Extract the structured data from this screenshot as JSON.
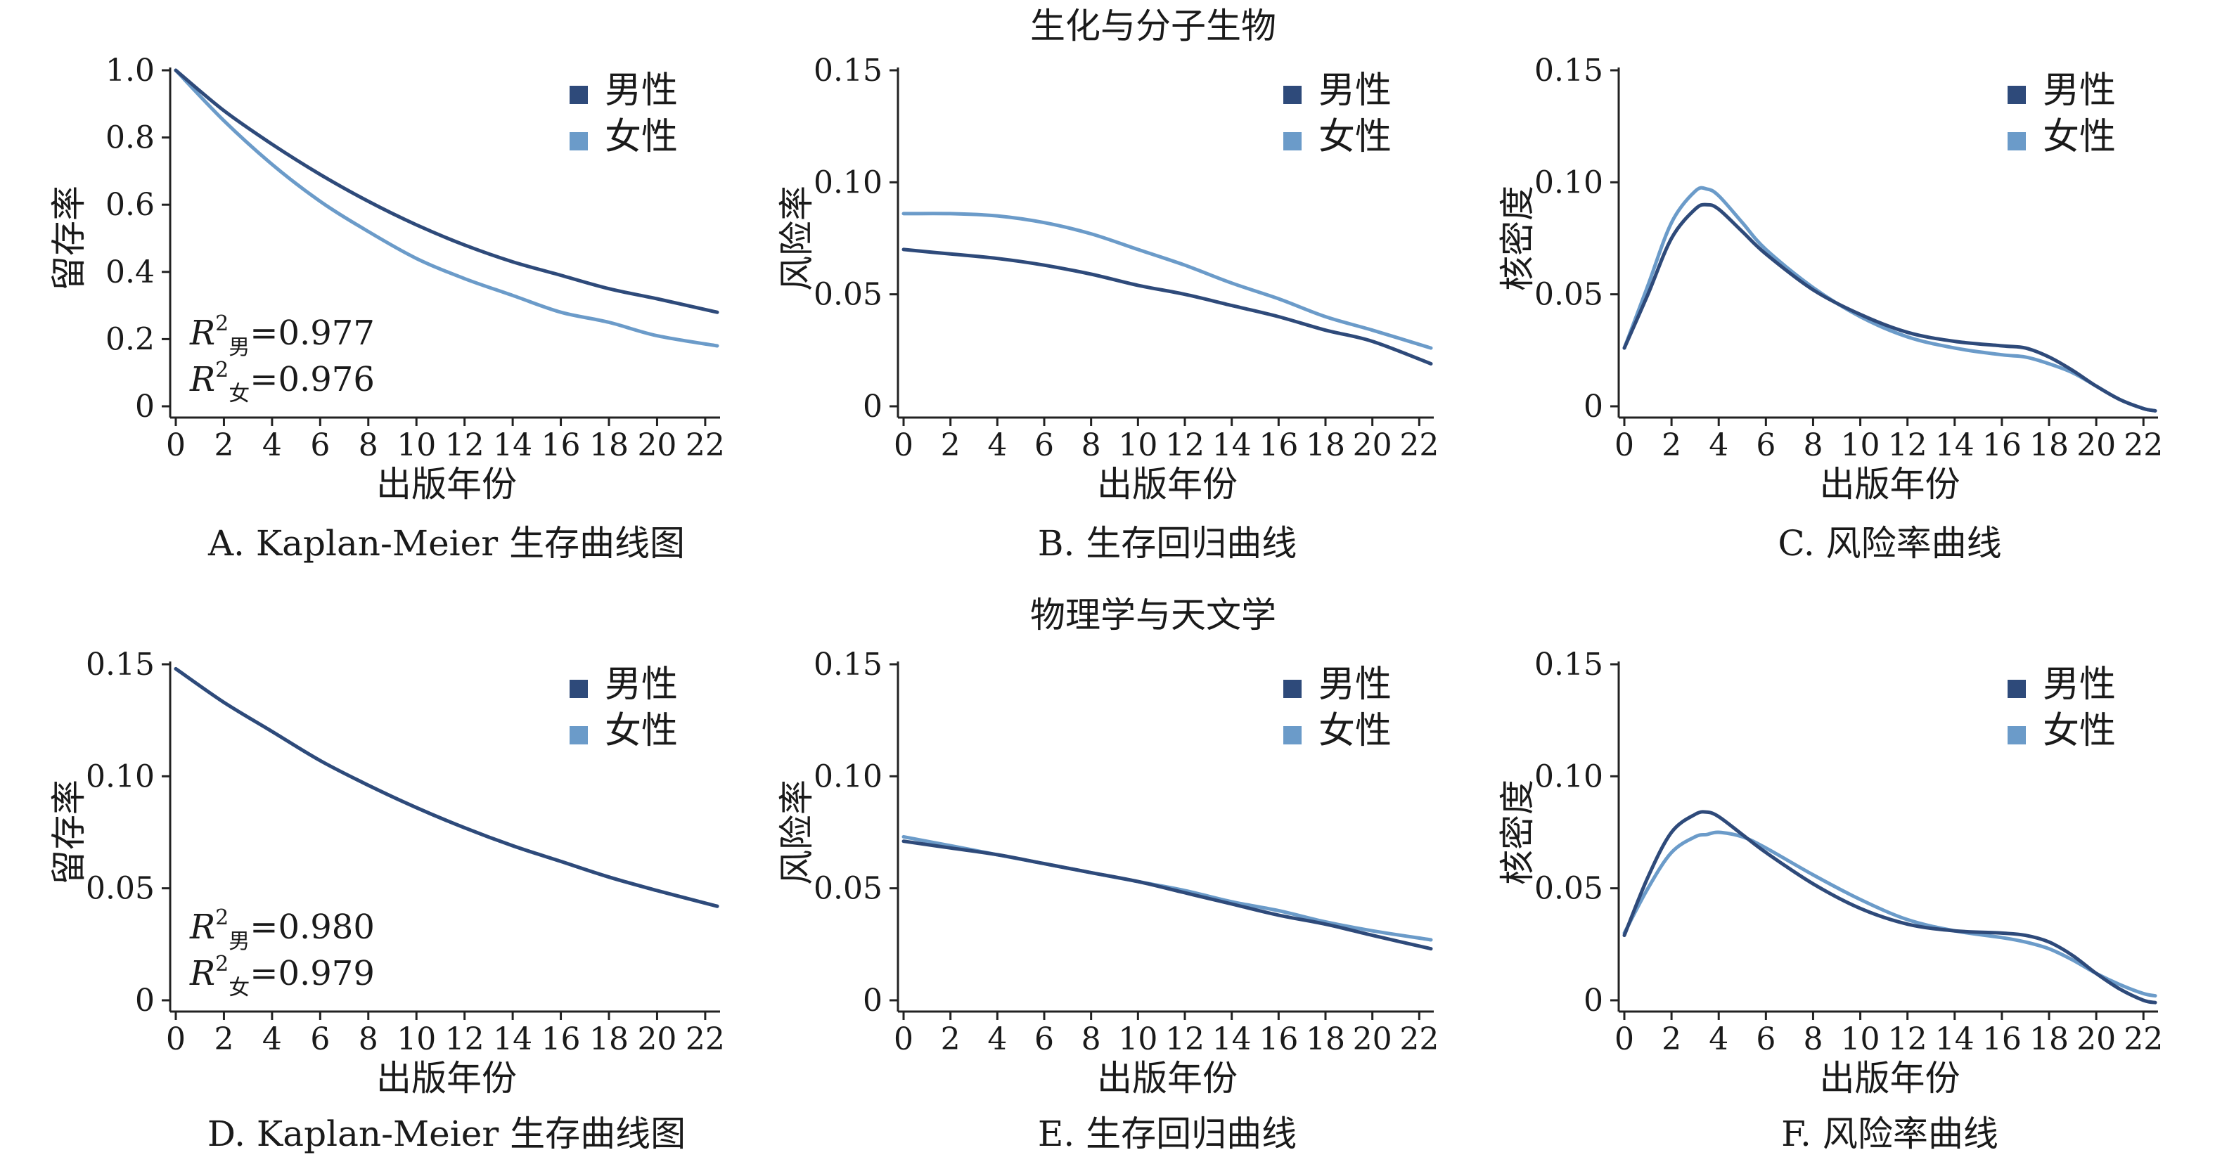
{
  "sections": [
    {
      "title": "生化与分子生物"
    },
    {
      "title": "物理学与天文学"
    }
  ],
  "colors": {
    "male": "#2e4a7a",
    "female": "#6b9bc9"
  },
  "legend": {
    "male": "男性",
    "female": "女性"
  },
  "chart_data": [
    {
      "id": "A",
      "type": "line",
      "caption": "A. Kaplan-Meier 生存曲线图",
      "xlabel": "出版年份",
      "ylabel": "留存率",
      "xlim": [
        0,
        22.5
      ],
      "ylim": [
        0,
        1.0
      ],
      "xticks": [
        0,
        2,
        4,
        6,
        8,
        10,
        12,
        14,
        16,
        18,
        20,
        22
      ],
      "yticks": [
        0,
        0.2,
        0.4,
        0.6,
        0.8,
        1.0
      ],
      "yticklabels": [
        "0",
        "0.2",
        "0.4",
        "0.6",
        "0.8",
        "1.0"
      ],
      "legend_position": "top-right",
      "x": [
        0,
        2,
        4,
        6,
        8,
        10,
        12,
        14,
        16,
        18,
        20,
        22.5
      ],
      "series": [
        {
          "name": "男性",
          "key": "male",
          "values": [
            1.0,
            0.88,
            0.78,
            0.69,
            0.61,
            0.54,
            0.48,
            0.43,
            0.39,
            0.35,
            0.32,
            0.28
          ]
        },
        {
          "name": "女性",
          "key": "female",
          "values": [
            1.0,
            0.85,
            0.72,
            0.61,
            0.52,
            0.44,
            0.38,
            0.33,
            0.28,
            0.25,
            0.21,
            0.18
          ]
        }
      ],
      "annotations": [
        {
          "r": "R",
          "sup": "2",
          "sub": "男",
          "rest": "=0.977"
        },
        {
          "r": "R",
          "sup": "2",
          "sub": "女",
          "rest": "=0.976"
        }
      ]
    },
    {
      "id": "B",
      "type": "line",
      "caption": "B. 生存回归曲线",
      "xlabel": "出版年份",
      "ylabel": "风险率",
      "xlim": [
        0,
        22.5
      ],
      "ylim": [
        0,
        0.15
      ],
      "xticks": [
        0,
        2,
        4,
        6,
        8,
        10,
        12,
        14,
        16,
        18,
        20,
        22
      ],
      "yticks": [
        0,
        0.05,
        0.1,
        0.15
      ],
      "yticklabels": [
        "0",
        "0.05",
        "0.10",
        "0.15"
      ],
      "legend_position": "top-right",
      "x": [
        0,
        2,
        4,
        6,
        8,
        10,
        12,
        14,
        16,
        18,
        20,
        22.5
      ],
      "series": [
        {
          "name": "男性",
          "key": "male",
          "values": [
            0.07,
            0.068,
            0.066,
            0.063,
            0.059,
            0.054,
            0.05,
            0.045,
            0.04,
            0.034,
            0.029,
            0.019
          ]
        },
        {
          "name": "女性",
          "key": "female",
          "values": [
            0.086,
            0.086,
            0.085,
            0.082,
            0.077,
            0.07,
            0.063,
            0.055,
            0.048,
            0.04,
            0.034,
            0.026
          ]
        }
      ],
      "annotations": []
    },
    {
      "id": "C",
      "type": "line",
      "caption": "C. 风险率曲线",
      "xlabel": "出版年份",
      "ylabel": "核密度",
      "xlim": [
        0,
        22.5
      ],
      "ylim": [
        0,
        0.15
      ],
      "xticks": [
        0,
        2,
        4,
        6,
        8,
        10,
        12,
        14,
        16,
        18,
        20,
        22
      ],
      "yticks": [
        0,
        0.05,
        0.1,
        0.15
      ],
      "yticklabels": [
        "0",
        "0.05",
        "0.10",
        "0.15"
      ],
      "legend_position": "top-right",
      "x": [
        0,
        1,
        2,
        3,
        3.5,
        4,
        5,
        6,
        8,
        10,
        12,
        14,
        16,
        17,
        18,
        19,
        20,
        21,
        22,
        22.5
      ],
      "series": [
        {
          "name": "男性",
          "key": "male",
          "values": [
            0.026,
            0.05,
            0.075,
            0.088,
            0.09,
            0.088,
            0.078,
            0.068,
            0.052,
            0.041,
            0.033,
            0.029,
            0.027,
            0.026,
            0.022,
            0.016,
            0.009,
            0.003,
            -0.001,
            -0.002
          ]
        },
        {
          "name": "女性",
          "key": "female",
          "values": [
            0.026,
            0.054,
            0.082,
            0.096,
            0.097,
            0.094,
            0.082,
            0.07,
            0.053,
            0.04,
            0.031,
            0.026,
            0.023,
            0.022,
            0.019,
            0.015,
            0.009,
            0.003,
            -0.001,
            -0.002
          ]
        }
      ],
      "annotations": []
    },
    {
      "id": "D",
      "type": "line",
      "caption": "D. Kaplan-Meier 生存曲线图",
      "xlabel": "出版年份",
      "ylabel": "留存率",
      "xlim": [
        0,
        22.5
      ],
      "ylim": [
        0,
        0.15
      ],
      "xticks": [
        0,
        2,
        4,
        6,
        8,
        10,
        12,
        14,
        16,
        18,
        20,
        22
      ],
      "yticks": [
        0,
        0.05,
        0.1,
        0.15
      ],
      "yticklabels": [
        "0",
        "0.05",
        "0.10",
        "0.15"
      ],
      "legend_position": "top-right",
      "x": [
        0,
        2,
        4,
        6,
        8,
        10,
        12,
        14,
        16,
        18,
        20,
        22.5
      ],
      "series": [
        {
          "name": "男性",
          "key": "male",
          "values": [
            0.148,
            0.133,
            0.12,
            0.107,
            0.096,
            0.086,
            0.077,
            0.069,
            0.062,
            0.055,
            0.049,
            0.042
          ]
        },
        {
          "name": "女性",
          "key": "female",
          "values": [
            0.148,
            0.133,
            0.12,
            0.107,
            0.096,
            0.086,
            0.077,
            0.069,
            0.062,
            0.055,
            0.049,
            0.042
          ]
        }
      ],
      "annotations": [
        {
          "r": "R",
          "sup": "2",
          "sub": "男",
          "rest": "=0.980"
        },
        {
          "r": "R",
          "sup": "2",
          "sub": "女",
          "rest": "=0.979"
        }
      ]
    },
    {
      "id": "E",
      "type": "line",
      "caption": "E. 生存回归曲线",
      "xlabel": "出版年份",
      "ylabel": "风险率",
      "xlim": [
        0,
        22.5
      ],
      "ylim": [
        0,
        0.15
      ],
      "xticks": [
        0,
        2,
        4,
        6,
        8,
        10,
        12,
        14,
        16,
        18,
        20,
        22
      ],
      "yticks": [
        0,
        0.05,
        0.1,
        0.15
      ],
      "yticklabels": [
        "0",
        "0.05",
        "0.10",
        "0.15"
      ],
      "legend_position": "top-right",
      "x": [
        0,
        2,
        4,
        6,
        8,
        10,
        12,
        14,
        16,
        18,
        20,
        22.5
      ],
      "series": [
        {
          "name": "男性",
          "key": "male",
          "values": [
            0.071,
            0.068,
            0.065,
            0.061,
            0.057,
            0.053,
            0.048,
            0.043,
            0.038,
            0.034,
            0.029,
            0.023
          ]
        },
        {
          "name": "女性",
          "key": "female",
          "values": [
            0.073,
            0.069,
            0.065,
            0.061,
            0.057,
            0.053,
            0.049,
            0.044,
            0.04,
            0.035,
            0.031,
            0.027
          ]
        }
      ],
      "annotations": []
    },
    {
      "id": "F",
      "type": "line",
      "caption": "F. 风险率曲线",
      "xlabel": "出版年份",
      "ylabel": "核密度",
      "xlim": [
        0,
        22.5
      ],
      "ylim": [
        0,
        0.15
      ],
      "xticks": [
        0,
        2,
        4,
        6,
        8,
        10,
        12,
        14,
        16,
        18,
        20,
        22
      ],
      "yticks": [
        0,
        0.05,
        0.1,
        0.15
      ],
      "yticklabels": [
        "0",
        "0.05",
        "0.10",
        "0.15"
      ],
      "legend_position": "top-right",
      "x": [
        0,
        1,
        2,
        3,
        3.5,
        4,
        5,
        6,
        8,
        10,
        12,
        14,
        16,
        17,
        18,
        19,
        20,
        21,
        22,
        22.5
      ],
      "series": [
        {
          "name": "男性",
          "key": "male",
          "values": [
            0.029,
            0.055,
            0.075,
            0.083,
            0.084,
            0.082,
            0.074,
            0.066,
            0.052,
            0.041,
            0.034,
            0.031,
            0.03,
            0.029,
            0.026,
            0.02,
            0.012,
            0.005,
            0.0,
            -0.001
          ]
        },
        {
          "name": "女性",
          "key": "female",
          "values": [
            0.03,
            0.05,
            0.066,
            0.073,
            0.074,
            0.075,
            0.073,
            0.068,
            0.056,
            0.045,
            0.036,
            0.031,
            0.028,
            0.026,
            0.023,
            0.018,
            0.012,
            0.007,
            0.003,
            0.002
          ]
        }
      ],
      "annotations": []
    }
  ]
}
